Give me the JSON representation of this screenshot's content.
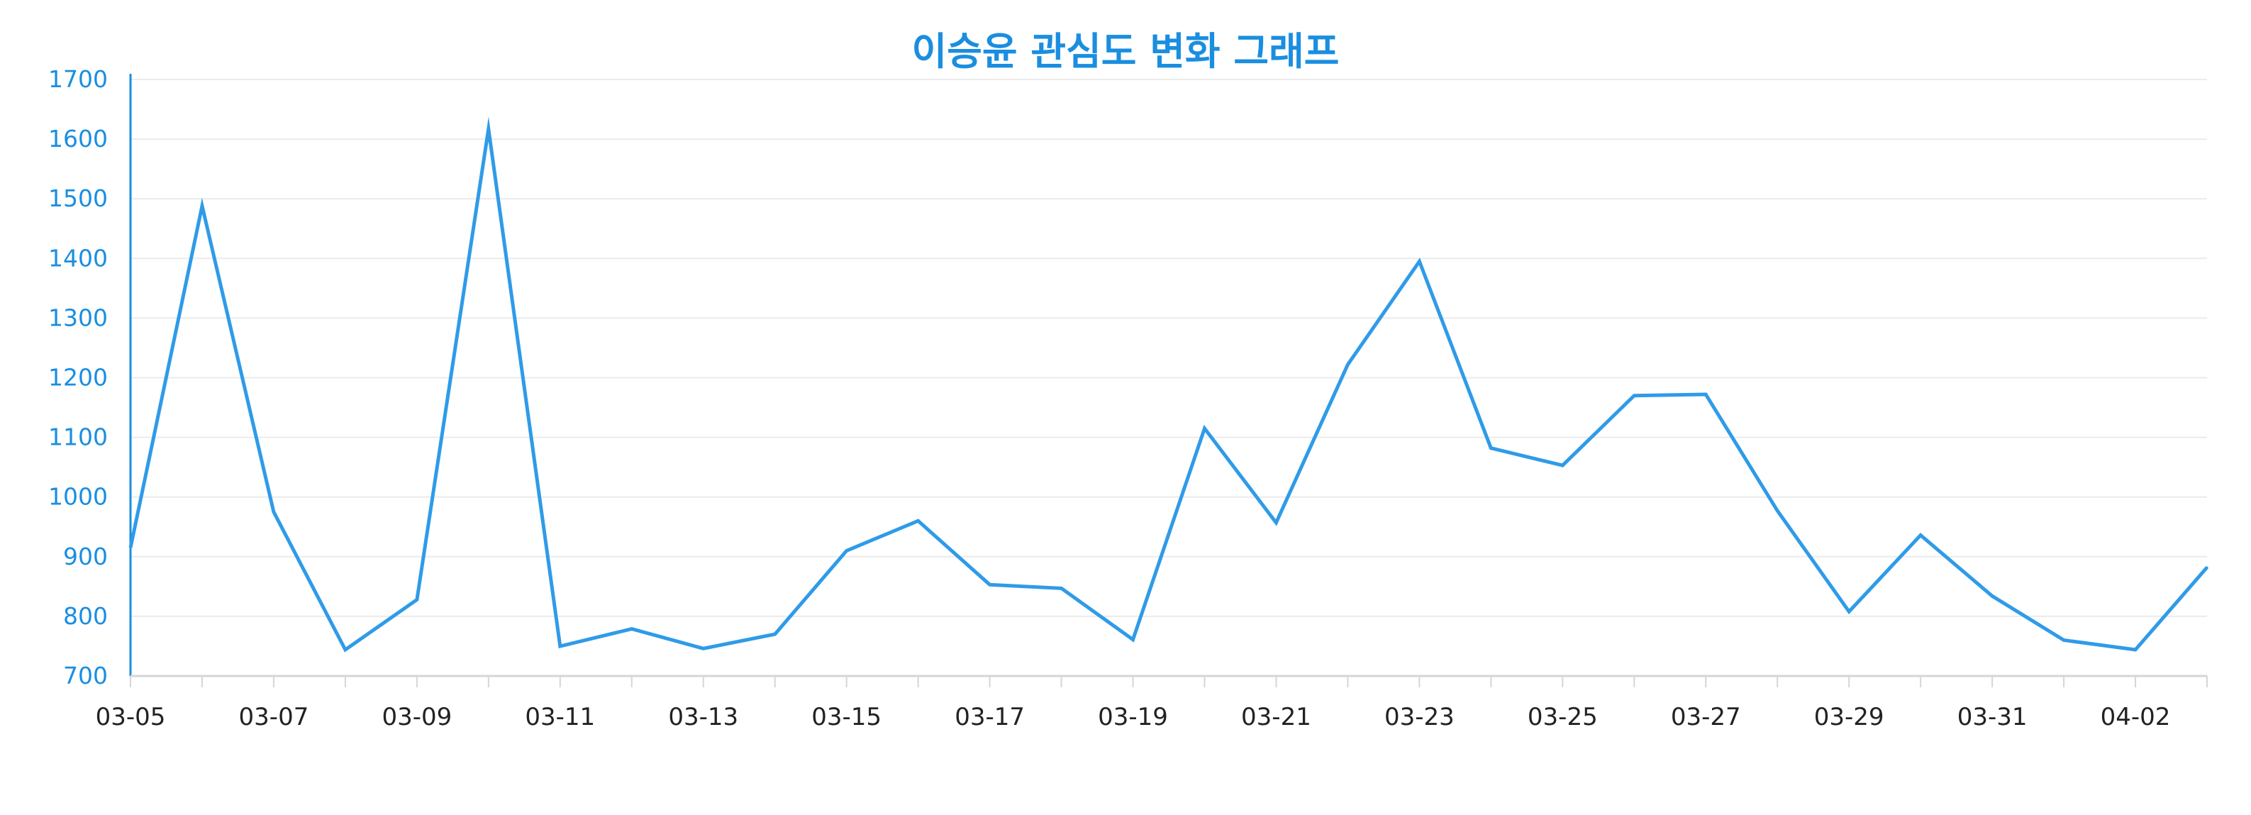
{
  "chart_data": {
    "type": "line",
    "title": "이승윤 관심도 변화 그래프",
    "xlabel": "",
    "ylabel": "",
    "ylim": [
      700,
      1700
    ],
    "y_ticks": [
      700,
      800,
      900,
      1000,
      1100,
      1200,
      1300,
      1400,
      1500,
      1600,
      1700
    ],
    "grid": true,
    "x": [
      "03-05",
      "03-06",
      "03-07",
      "03-08",
      "03-09",
      "03-10",
      "03-11",
      "03-12",
      "03-13",
      "03-14",
      "03-15",
      "03-16",
      "03-17",
      "03-18",
      "03-19",
      "03-20",
      "03-21",
      "03-22",
      "03-23",
      "03-24",
      "03-25",
      "03-26",
      "03-27",
      "03-28",
      "03-29",
      "03-30",
      "03-31",
      "04-01",
      "04-02",
      "04-03"
    ],
    "x_tick_labels": [
      "03-05",
      "03-07",
      "03-09",
      "03-11",
      "03-13",
      "03-15",
      "03-17",
      "03-19",
      "03-21",
      "03-23",
      "03-25",
      "03-27",
      "03-29",
      "03-31",
      "04-02"
    ],
    "x_tick_colors": {
      "03-09": "#1a9ad6",
      "03-23": "#1a9ad6",
      "03-17": "#e0533a",
      "03-31": "#e0533a"
    },
    "series": [
      {
        "color": "#2f9be8",
        "values": [
          915,
          1488,
          975,
          744,
          828,
          1617,
          750,
          779,
          746,
          770,
          910,
          960,
          853,
          847,
          761,
          1115,
          957,
          1222,
          1395,
          1082,
          1053,
          1170,
          1172,
          977,
          808,
          936,
          834,
          760,
          744,
          882
        ]
      }
    ]
  }
}
